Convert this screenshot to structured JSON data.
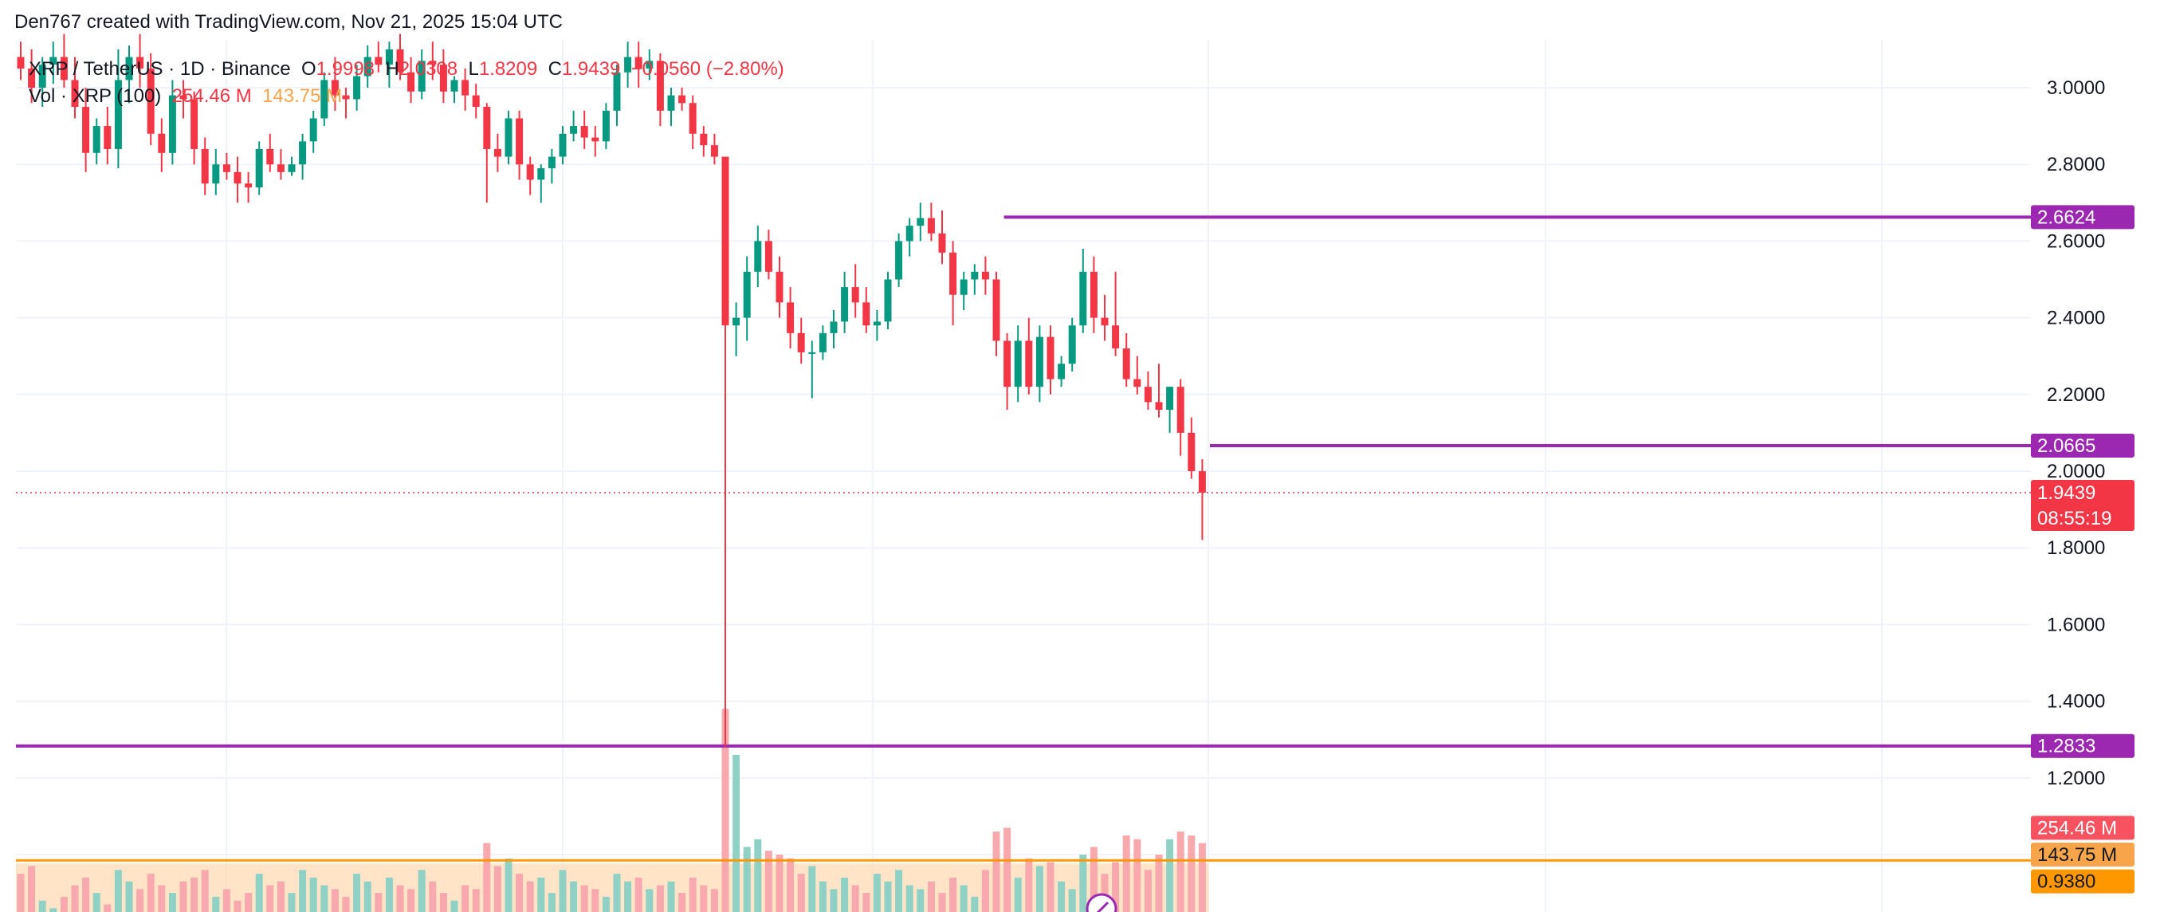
{
  "attribution": "Den767 created with TradingView.com, Nov 21, 2025 15:04 UTC",
  "legend": {
    "symbol": "XRP / TetherUS · 1D · Binance",
    "open_label": "O",
    "open": "1.9998",
    "high_label": "H",
    "high": "2.0308",
    "low_label": "L",
    "low": "1.8209",
    "close_label": "C",
    "close": "1.9439",
    "change": "−0.0560 (−2.80%)",
    "volume_label": "Vol · XRP (100)",
    "volume": "254.46 M",
    "volume_ma": "143.75 M"
  },
  "colors": {
    "up": "#089981",
    "down": "#f23645",
    "level_line": "#9c27b0",
    "volume_ma_line": "#ff9800",
    "up_volume": "#8fd1c4",
    "down_volume": "#f7a9ad",
    "volume_ma_fill": "#ffd8b0"
  },
  "chart_data": {
    "type": "candlestick",
    "title": "XRP / TetherUS · 1D · Binance",
    "y_axis": {
      "position": "right",
      "range": [
        0.93,
        3.1
      ],
      "ticks": [
        "3.0000",
        "2.8000",
        "2.6000",
        "2.4000",
        "2.2000",
        "2.0000",
        "1.8000",
        "1.6000",
        "1.4000",
        "1.2000",
        "1.0000"
      ]
    },
    "grid": true,
    "horizontal_levels": [
      {
        "value": 2.6624,
        "label": "2.6624",
        "start_index": 91
      },
      {
        "value": 2.0665,
        "label": "2.0665",
        "start_index": 110
      },
      {
        "value": 1.2833,
        "label": "1.2833",
        "start_index": 0
      }
    ],
    "last_price": {
      "value": 1.9439,
      "label": "1.9439",
      "countdown": "08:55:19"
    },
    "volume_tags": [
      {
        "value": 1.07,
        "label": "254.46 M",
        "kind": "volume"
      },
      {
        "value": 1.0,
        "label": "143.75 M",
        "kind": "volume_ma"
      },
      {
        "value": 0.93,
        "label": "0.9380",
        "kind": "price"
      }
    ],
    "volume_ma_value": 0.985,
    "candles": [
      {
        "o": 3.08,
        "h": 3.12,
        "l": 3.02,
        "c": 3.05
      },
      {
        "o": 3.05,
        "h": 3.1,
        "l": 2.96,
        "c": 3.0
      },
      {
        "o": 3.0,
        "h": 3.08,
        "l": 2.95,
        "c": 3.06
      },
      {
        "o": 3.06,
        "h": 3.12,
        "l": 3.01,
        "c": 3.08
      },
      {
        "o": 3.08,
        "h": 3.14,
        "l": 3.0,
        "c": 3.02
      },
      {
        "o": 3.02,
        "h": 3.08,
        "l": 2.92,
        "c": 2.95
      },
      {
        "o": 2.95,
        "h": 3.0,
        "l": 2.78,
        "c": 2.83
      },
      {
        "o": 2.83,
        "h": 2.92,
        "l": 2.8,
        "c": 2.9
      },
      {
        "o": 2.9,
        "h": 2.95,
        "l": 2.8,
        "c": 2.84
      },
      {
        "o": 2.84,
        "h": 3.1,
        "l": 2.79,
        "c": 3.02
      },
      {
        "o": 3.02,
        "h": 3.11,
        "l": 2.96,
        "c": 3.08
      },
      {
        "o": 3.08,
        "h": 3.14,
        "l": 3.0,
        "c": 3.05
      },
      {
        "o": 3.05,
        "h": 3.09,
        "l": 2.85,
        "c": 2.88
      },
      {
        "o": 2.88,
        "h": 2.92,
        "l": 2.78,
        "c": 2.83
      },
      {
        "o": 2.83,
        "h": 3.02,
        "l": 2.8,
        "c": 2.98
      },
      {
        "o": 2.98,
        "h": 3.02,
        "l": 2.92,
        "c": 2.97
      },
      {
        "o": 2.97,
        "h": 2.99,
        "l": 2.8,
        "c": 2.84
      },
      {
        "o": 2.84,
        "h": 2.87,
        "l": 2.72,
        "c": 2.75
      },
      {
        "o": 2.75,
        "h": 2.84,
        "l": 2.72,
        "c": 2.8
      },
      {
        "o": 2.8,
        "h": 2.83,
        "l": 2.76,
        "c": 2.78
      },
      {
        "o": 2.78,
        "h": 2.82,
        "l": 2.7,
        "c": 2.75
      },
      {
        "o": 2.75,
        "h": 2.78,
        "l": 2.7,
        "c": 2.74
      },
      {
        "o": 2.74,
        "h": 2.86,
        "l": 2.72,
        "c": 2.84
      },
      {
        "o": 2.84,
        "h": 2.88,
        "l": 2.78,
        "c": 2.8
      },
      {
        "o": 2.8,
        "h": 2.84,
        "l": 2.76,
        "c": 2.78
      },
      {
        "o": 2.78,
        "h": 2.82,
        "l": 2.77,
        "c": 2.8
      },
      {
        "o": 2.8,
        "h": 2.88,
        "l": 2.76,
        "c": 2.86
      },
      {
        "o": 2.86,
        "h": 2.94,
        "l": 2.83,
        "c": 2.92
      },
      {
        "o": 2.92,
        "h": 3.04,
        "l": 2.9,
        "c": 3.02
      },
      {
        "o": 3.02,
        "h": 3.08,
        "l": 2.94,
        "c": 2.98
      },
      {
        "o": 2.98,
        "h": 3.0,
        "l": 2.92,
        "c": 2.97
      },
      {
        "o": 2.97,
        "h": 3.06,
        "l": 2.94,
        "c": 3.03
      },
      {
        "o": 3.03,
        "h": 3.11,
        "l": 3.0,
        "c": 3.08
      },
      {
        "o": 3.08,
        "h": 3.12,
        "l": 3.04,
        "c": 3.06
      },
      {
        "o": 3.06,
        "h": 3.12,
        "l": 3.0,
        "c": 3.1
      },
      {
        "o": 3.1,
        "h": 3.14,
        "l": 3.02,
        "c": 3.04
      },
      {
        "o": 3.04,
        "h": 3.08,
        "l": 2.96,
        "c": 2.99
      },
      {
        "o": 2.99,
        "h": 3.1,
        "l": 2.97,
        "c": 3.07
      },
      {
        "o": 3.07,
        "h": 3.12,
        "l": 3.02,
        "c": 3.06
      },
      {
        "o": 3.06,
        "h": 3.1,
        "l": 2.96,
        "c": 2.99
      },
      {
        "o": 2.99,
        "h": 3.03,
        "l": 2.96,
        "c": 3.02
      },
      {
        "o": 3.02,
        "h": 3.05,
        "l": 2.94,
        "c": 2.98
      },
      {
        "o": 2.98,
        "h": 3.01,
        "l": 2.92,
        "c": 2.95
      },
      {
        "o": 2.95,
        "h": 2.96,
        "l": 2.7,
        "c": 2.84
      },
      {
        "o": 2.84,
        "h": 2.88,
        "l": 2.78,
        "c": 2.82
      },
      {
        "o": 2.82,
        "h": 2.94,
        "l": 2.8,
        "c": 2.92
      },
      {
        "o": 2.92,
        "h": 2.94,
        "l": 2.76,
        "c": 2.8
      },
      {
        "o": 2.8,
        "h": 2.82,
        "l": 2.72,
        "c": 2.76
      },
      {
        "o": 2.76,
        "h": 2.8,
        "l": 2.7,
        "c": 2.79
      },
      {
        "o": 2.79,
        "h": 2.84,
        "l": 2.75,
        "c": 2.82
      },
      {
        "o": 2.82,
        "h": 2.9,
        "l": 2.8,
        "c": 2.88
      },
      {
        "o": 2.88,
        "h": 2.94,
        "l": 2.86,
        "c": 2.9
      },
      {
        "o": 2.9,
        "h": 2.94,
        "l": 2.84,
        "c": 2.87
      },
      {
        "o": 2.87,
        "h": 2.9,
        "l": 2.82,
        "c": 2.86
      },
      {
        "o": 2.86,
        "h": 2.96,
        "l": 2.84,
        "c": 2.94
      },
      {
        "o": 2.94,
        "h": 3.06,
        "l": 2.9,
        "c": 3.04
      },
      {
        "o": 3.04,
        "h": 3.12,
        "l": 3.0,
        "c": 3.08
      },
      {
        "o": 3.08,
        "h": 3.12,
        "l": 3.0,
        "c": 3.05
      },
      {
        "o": 3.05,
        "h": 3.1,
        "l": 3.02,
        "c": 3.07
      },
      {
        "o": 3.07,
        "h": 3.09,
        "l": 2.9,
        "c": 2.94
      },
      {
        "o": 2.94,
        "h": 3.0,
        "l": 2.9,
        "c": 2.98
      },
      {
        "o": 2.98,
        "h": 3.0,
        "l": 2.94,
        "c": 2.96
      },
      {
        "o": 2.96,
        "h": 2.98,
        "l": 2.84,
        "c": 2.88
      },
      {
        "o": 2.88,
        "h": 2.9,
        "l": 2.82,
        "c": 2.85
      },
      {
        "o": 2.85,
        "h": 2.88,
        "l": 2.8,
        "c": 2.82
      },
      {
        "o": 2.82,
        "h": 2.82,
        "l": 1.28,
        "c": 2.38
      },
      {
        "o": 2.38,
        "h": 2.44,
        "l": 2.3,
        "c": 2.4
      },
      {
        "o": 2.4,
        "h": 2.56,
        "l": 2.34,
        "c": 2.52
      },
      {
        "o": 2.52,
        "h": 2.64,
        "l": 2.48,
        "c": 2.6
      },
      {
        "o": 2.6,
        "h": 2.63,
        "l": 2.5,
        "c": 2.52
      },
      {
        "o": 2.52,
        "h": 2.56,
        "l": 2.4,
        "c": 2.44
      },
      {
        "o": 2.44,
        "h": 2.48,
        "l": 2.32,
        "c": 2.36
      },
      {
        "o": 2.36,
        "h": 2.4,
        "l": 2.28,
        "c": 2.31
      },
      {
        "o": 2.31,
        "h": 2.34,
        "l": 2.19,
        "c": 2.31
      },
      {
        "o": 2.31,
        "h": 2.38,
        "l": 2.29,
        "c": 2.36
      },
      {
        "o": 2.36,
        "h": 2.42,
        "l": 2.32,
        "c": 2.39
      },
      {
        "o": 2.39,
        "h": 2.52,
        "l": 2.36,
        "c": 2.48
      },
      {
        "o": 2.48,
        "h": 2.54,
        "l": 2.4,
        "c": 2.44
      },
      {
        "o": 2.44,
        "h": 2.48,
        "l": 2.36,
        "c": 2.38
      },
      {
        "o": 2.38,
        "h": 2.42,
        "l": 2.34,
        "c": 2.39
      },
      {
        "o": 2.39,
        "h": 2.52,
        "l": 2.37,
        "c": 2.5
      },
      {
        "o": 2.5,
        "h": 2.62,
        "l": 2.48,
        "c": 2.6
      },
      {
        "o": 2.6,
        "h": 2.66,
        "l": 2.56,
        "c": 2.64
      },
      {
        "o": 2.64,
        "h": 2.7,
        "l": 2.6,
        "c": 2.66
      },
      {
        "o": 2.66,
        "h": 2.7,
        "l": 2.6,
        "c": 2.62
      },
      {
        "o": 2.62,
        "h": 2.68,
        "l": 2.54,
        "c": 2.57
      },
      {
        "o": 2.57,
        "h": 2.6,
        "l": 2.38,
        "c": 2.46
      },
      {
        "o": 2.46,
        "h": 2.52,
        "l": 2.42,
        "c": 2.5
      },
      {
        "o": 2.5,
        "h": 2.54,
        "l": 2.46,
        "c": 2.52
      },
      {
        "o": 2.52,
        "h": 2.56,
        "l": 2.46,
        "c": 2.5
      },
      {
        "o": 2.5,
        "h": 2.52,
        "l": 2.3,
        "c": 2.34
      },
      {
        "o": 2.34,
        "h": 2.36,
        "l": 2.16,
        "c": 2.22
      },
      {
        "o": 2.22,
        "h": 2.38,
        "l": 2.18,
        "c": 2.34
      },
      {
        "o": 2.34,
        "h": 2.4,
        "l": 2.2,
        "c": 2.22
      },
      {
        "o": 2.22,
        "h": 2.38,
        "l": 2.18,
        "c": 2.35
      },
      {
        "o": 2.35,
        "h": 2.38,
        "l": 2.2,
        "c": 2.24
      },
      {
        "o": 2.24,
        "h": 2.3,
        "l": 2.22,
        "c": 2.28
      },
      {
        "o": 2.28,
        "h": 2.4,
        "l": 2.26,
        "c": 2.38
      },
      {
        "o": 2.38,
        "h": 2.58,
        "l": 2.36,
        "c": 2.52
      },
      {
        "o": 2.52,
        "h": 2.56,
        "l": 2.36,
        "c": 2.4
      },
      {
        "o": 2.4,
        "h": 2.46,
        "l": 2.34,
        "c": 2.38
      },
      {
        "o": 2.38,
        "h": 2.52,
        "l": 2.3,
        "c": 2.32
      },
      {
        "o": 2.32,
        "h": 2.36,
        "l": 2.22,
        "c": 2.24
      },
      {
        "o": 2.24,
        "h": 2.3,
        "l": 2.2,
        "c": 2.22
      },
      {
        "o": 2.22,
        "h": 2.26,
        "l": 2.16,
        "c": 2.18
      },
      {
        "o": 2.18,
        "h": 2.28,
        "l": 2.14,
        "c": 2.16
      },
      {
        "o": 2.16,
        "h": 2.22,
        "l": 2.1,
        "c": 2.22
      },
      {
        "o": 2.22,
        "h": 2.24,
        "l": 2.04,
        "c": 2.1
      },
      {
        "o": 2.1,
        "h": 2.14,
        "l": 1.98,
        "c": 2.0
      },
      {
        "o": 1.9998,
        "h": 2.0308,
        "l": 1.8209,
        "c": 1.9439
      }
    ],
    "volumes": [
      0.95,
      0.97,
      0.88,
      0.86,
      0.89,
      0.92,
      0.94,
      0.9,
      0.87,
      0.96,
      0.93,
      0.91,
      0.95,
      0.92,
      0.9,
      0.93,
      0.94,
      0.96,
      0.89,
      0.91,
      0.88,
      0.9,
      0.95,
      0.92,
      0.93,
      0.9,
      0.96,
      0.94,
      0.92,
      0.91,
      0.89,
      0.95,
      0.93,
      0.9,
      0.94,
      0.92,
      0.91,
      0.96,
      0.93,
      0.9,
      0.88,
      0.92,
      0.91,
      1.03,
      0.97,
      0.99,
      0.95,
      0.93,
      0.94,
      0.9,
      0.96,
      0.93,
      0.92,
      0.91,
      0.89,
      0.95,
      0.93,
      0.94,
      0.91,
      0.92,
      0.93,
      0.9,
      0.94,
      0.92,
      0.91,
      1.38,
      1.26,
      1.02,
      1.04,
      1.01,
      1.0,
      0.99,
      0.95,
      0.97,
      0.93,
      0.91,
      0.94,
      0.92,
      0.9,
      0.95,
      0.93,
      0.96,
      0.92,
      0.91,
      0.93,
      0.9,
      0.94,
      0.92,
      0.89,
      0.96,
      1.06,
      1.07,
      0.94,
      0.99,
      0.97,
      0.98,
      0.93,
      0.91,
      1.0,
      1.02,
      0.95,
      0.98,
      1.05,
      1.04,
      0.96,
      1.0,
      1.04,
      1.06,
      1.05,
      1.03
    ]
  }
}
